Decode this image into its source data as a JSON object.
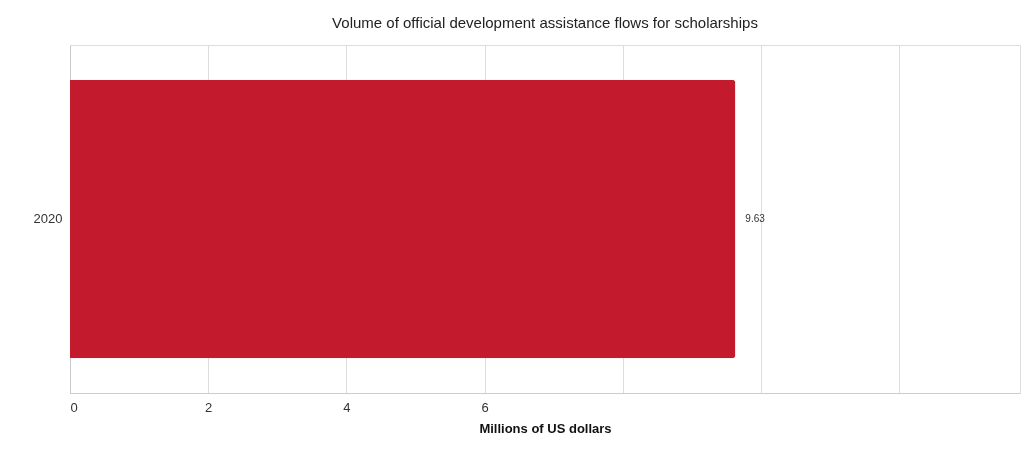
{
  "chart_data": {
    "type": "bar",
    "orientation": "horizontal",
    "title": "Volume of official development assistance flows for scholarships",
    "xlabel": "Millions of US dollars",
    "categories": [
      "2020"
    ],
    "series": [
      {
        "color": "#c41a2e",
        "values": [
          9.63
        ]
      }
    ],
    "data_labels": true,
    "xlim": [
      0,
      13.75
    ],
    "xticks": [
      0,
      2,
      4,
      6,
      {
        "value": 8,
        "label": null
      },
      {
        "value": 10,
        "label": null
      },
      {
        "value": 12,
        "label": null
      }
    ],
    "grid": "x"
  }
}
